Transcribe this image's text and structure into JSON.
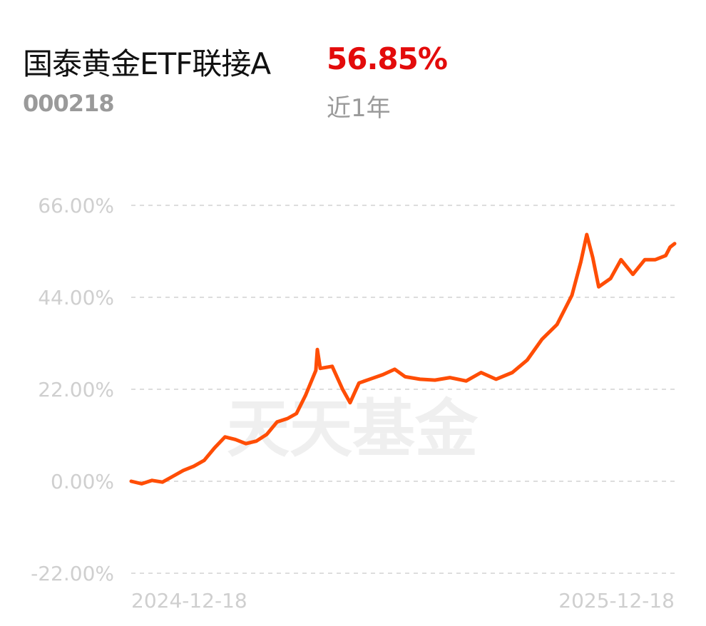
{
  "header": {
    "fund_name": "国泰黄金ETF联接A",
    "return_pct": "56.85%",
    "fund_code": "000218",
    "period": "近1年"
  },
  "watermark": "天天基金",
  "colors": {
    "line": "#ff4d05",
    "return": "#e30b0b",
    "muted": "#9a9a9a",
    "grid": "#dddddd",
    "tick": "#cfcfcf"
  },
  "chart_data": {
    "type": "line",
    "title": "",
    "xlabel": "",
    "ylabel": "",
    "ylim": [
      -22,
      66
    ],
    "yticks": [
      66,
      44,
      22,
      0,
      -22
    ],
    "ytick_labels": [
      "66.00%",
      "44.00%",
      "22.00%",
      "0.00%",
      "-22.00%"
    ],
    "x_start": "2024-12-18",
    "x_end": "2025-12-18",
    "xtick_labels": [
      "2024-12-18",
      "2025-12-18"
    ],
    "grid": true,
    "series": [
      {
        "points": [
          [
            "2024-12-18",
            0.0
          ],
          [
            "2024-12-25",
            -0.6
          ],
          [
            "2025-01-01",
            0.2
          ],
          [
            "2025-01-08",
            -0.2
          ],
          [
            "2025-01-15",
            1.2
          ],
          [
            "2025-01-22",
            2.6
          ],
          [
            "2025-01-29",
            3.6
          ],
          [
            "2025-02-05",
            5.0
          ],
          [
            "2025-02-12",
            8.0
          ],
          [
            "2025-02-19",
            10.6
          ],
          [
            "2025-02-26",
            10.0
          ],
          [
            "2025-03-05",
            9.0
          ],
          [
            "2025-03-12",
            9.6
          ],
          [
            "2025-03-19",
            11.2
          ],
          [
            "2025-03-26",
            14.2
          ],
          [
            "2025-04-02",
            15.0
          ],
          [
            "2025-04-08",
            16.2
          ],
          [
            "2025-04-14",
            20.5
          ],
          [
            "2025-04-21",
            26.5
          ],
          [
            "2025-04-22",
            31.5
          ],
          [
            "2025-04-24",
            27.0
          ],
          [
            "2025-05-02",
            27.5
          ],
          [
            "2025-05-09",
            22.0
          ],
          [
            "2025-05-14",
            18.8
          ],
          [
            "2025-05-20",
            23.5
          ],
          [
            "2025-05-28",
            24.5
          ],
          [
            "2025-06-05",
            25.5
          ],
          [
            "2025-06-13",
            26.8
          ],
          [
            "2025-06-20",
            25.0
          ],
          [
            "2025-06-30",
            24.4
          ],
          [
            "2025-07-10",
            24.2
          ],
          [
            "2025-07-20",
            24.8
          ],
          [
            "2025-07-31",
            24.0
          ],
          [
            "2025-08-10",
            26.0
          ],
          [
            "2025-08-20",
            24.4
          ],
          [
            "2025-08-31",
            26.0
          ],
          [
            "2025-09-10",
            29.0
          ],
          [
            "2025-09-20",
            34.0
          ],
          [
            "2025-09-30",
            37.5
          ],
          [
            "2025-10-10",
            44.5
          ],
          [
            "2025-10-16",
            52.5
          ],
          [
            "2025-10-20",
            59.0
          ],
          [
            "2025-10-24",
            53.5
          ],
          [
            "2025-10-28",
            46.5
          ],
          [
            "2025-11-05",
            48.5
          ],
          [
            "2025-11-12",
            53.0
          ],
          [
            "2025-11-20",
            49.5
          ],
          [
            "2025-11-28",
            53.0
          ],
          [
            "2025-12-05",
            53.0
          ],
          [
            "2025-12-12",
            54.0
          ],
          [
            "2025-12-15",
            56.0
          ],
          [
            "2025-12-18",
            56.85
          ]
        ]
      }
    ]
  }
}
